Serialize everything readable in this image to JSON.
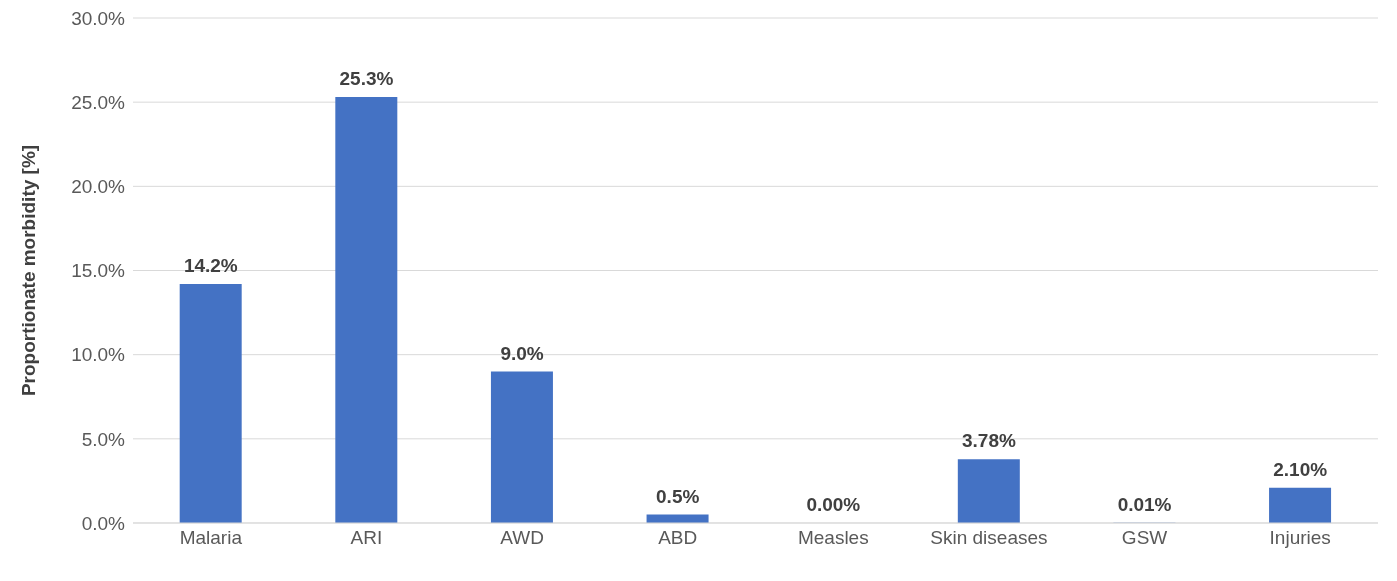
{
  "chart_data": {
    "type": "bar",
    "ylabel": "Proportionate morbidity [%]",
    "categories": [
      "Malaria",
      "ARI",
      "AWD",
      "ABD",
      "Measles",
      "Skin diseases",
      "GSW",
      "Injuries"
    ],
    "values": [
      14.2,
      25.3,
      9.0,
      0.5,
      0.0,
      3.78,
      0.01,
      2.1
    ],
    "value_labels": [
      "14.2%",
      "25.3%",
      "9.0%",
      "0.5%",
      "0.00%",
      "3.78%",
      "0.01%",
      "2.10%"
    ],
    "color": "#4472c4",
    "ylim": [
      0,
      30
    ],
    "yticks": [
      {
        "value": 0,
        "label": "0.0%"
      },
      {
        "value": 5,
        "label": "5.0%"
      },
      {
        "value": 10,
        "label": "10.0%"
      },
      {
        "value": 15,
        "label": "15.0%"
      },
      {
        "value": 20,
        "label": "20.0%"
      },
      {
        "value": 25,
        "label": "25.0%"
      },
      {
        "value": 30,
        "label": "30.0%"
      }
    ],
    "grid": "y"
  }
}
